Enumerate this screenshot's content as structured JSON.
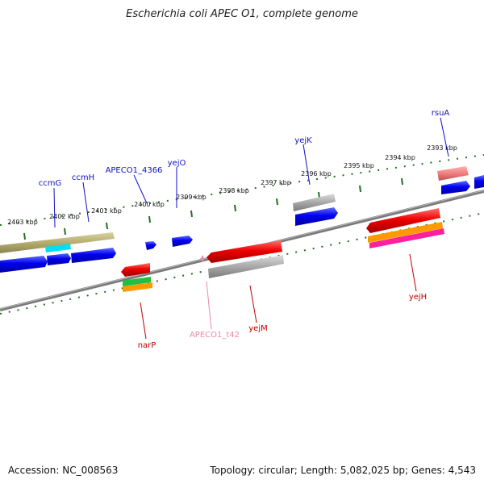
{
  "title": "Escherichia coli APEC O1, complete genome",
  "footer": {
    "accession": "Accession: NC_008563",
    "topology": "Topology: circular; Length: 5,082,025 bp; Genes: 4,543"
  },
  "scale": {
    "ticks": [
      "2403 kbp",
      "2402 kbp",
      "2401 kbp",
      "2400 kbp",
      "2399 kbp",
      "2398 kbp",
      "2397 kbp",
      "2396 kbp",
      "2395 kbp",
      "2394 kbp",
      "2393 kbp"
    ]
  },
  "labels": {
    "forward": [
      "ccmG",
      "ccmH",
      "APECO1_4366",
      "yejO",
      "yejK",
      "rsuA"
    ],
    "reverse": [
      "narP",
      "APECO1_t42",
      "yejM",
      "yejH"
    ]
  },
  "colors": {
    "forward_label": "#1010c0",
    "reverse_label": "#c00000",
    "trna_label": "#e88aa8",
    "cds_forward": "#0000ee",
    "cds_reverse": "#ee0000",
    "gene_gray": "#a8a8a8",
    "olive": "#b4ac70",
    "cyan": "#00e0ee",
    "green": "#20c040",
    "orange": "#ff9900",
    "magenta": "#ff20a0",
    "pink": "#f08080",
    "tick_green": "#207020",
    "backbone": "#7a7a7a"
  }
}
